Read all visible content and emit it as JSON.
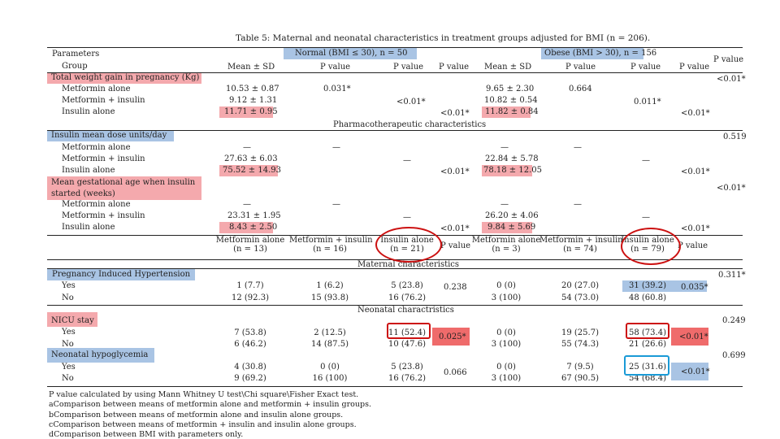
{
  "title": "Table 5: Maternal and neonatal characteristics in treatment groups adjusted for BMI (n = 206).",
  "top_header": {
    "parameters": "Parameters",
    "group": "Group",
    "normal": "Normal (BMI ≤ 30), n = 50",
    "obese": "Obese (BMI > 30), n = 156",
    "mean_sd_1": "Mean ± SD",
    "pvalue_a_1": "P value",
    "pvalue_b_1": "P value",
    "pvalue_c_1": "P value",
    "mean_sd_2": "Mean ± SD",
    "pvalue_a_2": "P value",
    "pvalue_b_2": "P value",
    "pvalue_c_2": "P value",
    "pvalue_d": "P value"
  },
  "sections": {
    "weight": {
      "label": "Total weight gain in pregnancy (Kg)",
      "rows": [
        {
          "group": "Metformin alone",
          "m1": "10.53 ± 0.87",
          "pa1": "0.031*",
          "m2": "9.65 ± 2.30",
          "pa2": "0.664"
        },
        {
          "group": "Metformin + insulin",
          "m1": "9.12 ± 1.31",
          "pb1": "<0.01*",
          "m2": "10.82 ± 0.54",
          "pb2": "0.011*"
        },
        {
          "group": "Insulin alone",
          "m1": "11.71 ± 0.95",
          "pc1": "<0.01*",
          "m2": "11.82 ± 0.84",
          "pc2": "<0.01*"
        }
      ],
      "pd": "<0.01*"
    },
    "pharma_heading": "Pharmacotherapeutic characteristics",
    "insulin_dose": {
      "label": "Insulin mean dose units/day",
      "rows": [
        {
          "group": "Metformin alone",
          "m1": "—",
          "pa1": "—",
          "m2": "—",
          "pa2": "—"
        },
        {
          "group": "Metformin + insulin",
          "m1": "27.63 ± 6.03",
          "pb1": "—",
          "m2": "22.84 ± 5.78",
          "pb2": "—"
        },
        {
          "group": "Insulin alone",
          "m1": "75.52 ± 14.93",
          "pc1": "<0.01*",
          "m2": "78.18 ± 12.05",
          "pc2": "<0.01*"
        }
      ],
      "pd": "0.519"
    },
    "gest_age": {
      "label": "Mean gestational age when insulin started (weeks)",
      "rows": [
        {
          "group": "Metformin alone",
          "m1": "—",
          "pa1": "—",
          "m2": "—",
          "pa2": "—"
        },
        {
          "group": "Metformin + insulin",
          "m1": "23.31 ± 1.95",
          "pb1": "—",
          "m2": "26.20 ± 4.06",
          "pb2": "—"
        },
        {
          "group": "Insulin alone",
          "m1": "8.43 ± 2.50",
          "pc1": "<0.01*",
          "m2": "9.84 ± 5.69",
          "pc2": "<0.01*"
        }
      ],
      "pd": "<0.01*"
    },
    "second_header": {
      "g1": "Metformin alone",
      "n1": "(n = 13)",
      "g2": "Metformin + insulin",
      "n2": "(n = 16)",
      "g3": "Insulin alone",
      "n3": "(n = 21)",
      "p1": "P value",
      "g4": "Metformin alone",
      "n4": "(n = 3)",
      "g5": "Metformin + insulin",
      "n5": "(n = 74)",
      "g6": "Insulin alone",
      "n6": "(n = 79)",
      "p2": "P value"
    },
    "maternal_heading": "Maternal characteristics",
    "pih": {
      "label": "Pregnancy Induced Hypertension",
      "pd": "0.311*",
      "rows": [
        {
          "name": "Yes",
          "c1": "1 (7.7)",
          "c2": "1 (6.2)",
          "c3": "5 (23.8)",
          "p1": "0.238",
          "c4": "0 (0)",
          "c5": "20 (27.0)",
          "c6": "31 (39.2)",
          "p2": "0.035*"
        },
        {
          "name": "No",
          "c1": "12 (92.3)",
          "c2": "15 (93.8)",
          "c3": "16 (76.2)",
          "c4": "3 (100)",
          "c5": "54 (73.0)",
          "c6": "48 (60.8)"
        }
      ]
    },
    "neonatal_heading": "Neonatal charactristics",
    "nicu": {
      "label": "NICU stay",
      "pd": "0.249",
      "rows": [
        {
          "name": "Yes",
          "c1": "7 (53.8)",
          "c2": "2 (12.5)",
          "c3": "11 (52.4)",
          "p1": "0.025*",
          "c4": "0 (0)",
          "c5": "19 (25.7)",
          "c6": "58 (73.4)",
          "p2": "<0.01*"
        },
        {
          "name": "No",
          "c1": "6 (46.2)",
          "c2": "14 (87.5)",
          "c3": "10 (47.6)",
          "c4": "3 (100)",
          "c5": "55 (74.3)",
          "c6": "21 (26.6)"
        }
      ]
    },
    "hypo": {
      "label": "Neonatal hypoglycemia",
      "pd": "0.699",
      "rows": [
        {
          "name": "Yes",
          "c1": "4 (30.8)",
          "c2": "0 (0)",
          "c3": "5 (23.8)",
          "p1": "0.066",
          "c4": "0 (0)",
          "c5": "7 (9.5)",
          "c6": "25 (31.6)",
          "p2": "<0.01*"
        },
        {
          "name": "No",
          "c1": "9 (69.2)",
          "c2": "16 (100)",
          "c3": "16 (76.2)",
          "c4": "3 (100)",
          "c5": "67 (90.5)",
          "c6": "54 (68.4)"
        }
      ]
    }
  },
  "footnotes": [
    "P value calculated by using Mann Whitney U test\\Chi square\\Fisher Exact test.",
    "aComparison between means of metformin alone and metformin + insulin groups.",
    "bComparison between means of metformin alone and insulin alone groups.",
    "cComparison between means of metformin + insulin and insulin alone groups.",
    "dComparison between BMI with parameters only."
  ],
  "colors": {
    "pink": "#f4a9ad",
    "blue": "#a9c4e4",
    "red_fill": "#ef6b6b",
    "red_outline": "#cc1111",
    "cyan_outline": "#1a9ad6"
  }
}
